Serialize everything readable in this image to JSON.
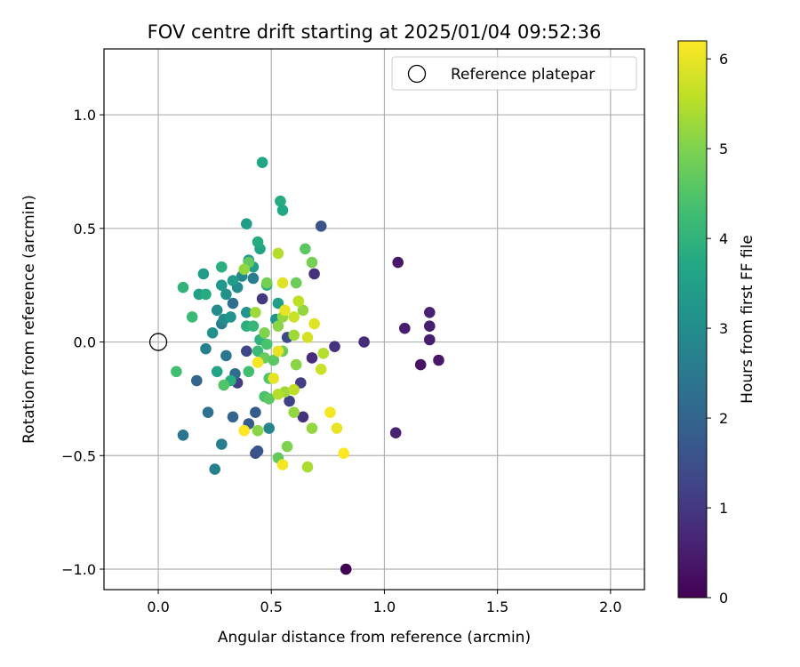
{
  "chart_data": {
    "type": "scatter",
    "title": "FOV centre drift starting at 2025/01/04 09:52:36",
    "xlabel": "Angular distance from reference (arcmin)",
    "ylabel": "Rotation from reference (arcmin)",
    "xlim": [
      -0.24,
      2.15
    ],
    "ylim": [
      -1.09,
      1.29
    ],
    "x_ticks": [
      0.0,
      0.5,
      1.0,
      1.5,
      2.0
    ],
    "x_tick_labels": [
      "0.0",
      "0.5",
      "1.0",
      "1.5",
      "2.0"
    ],
    "y_ticks": [
      -1.0,
      -0.5,
      0.0,
      0.5,
      1.0
    ],
    "y_tick_labels": [
      "−1.0",
      "−0.5",
      "0.0",
      "0.5",
      "1.0"
    ],
    "grid": true,
    "legend": {
      "placement": "top-right",
      "entries": [
        "Reference platepar"
      ]
    },
    "colorbar": {
      "label": "Hours from first FF file",
      "colormap": "viridis",
      "range": [
        0,
        6.2
      ],
      "ticks": [
        0,
        1,
        2,
        3,
        4,
        5,
        6
      ],
      "tick_labels": [
        "0",
        "1",
        "2",
        "3",
        "4",
        "5",
        "6"
      ]
    },
    "reference": {
      "x": 0.0,
      "y": 0.0
    },
    "points": [
      {
        "x": 0.83,
        "y": -1.0,
        "h": 0.0
      },
      {
        "x": 1.06,
        "y": 0.35,
        "h": 0.4
      },
      {
        "x": 1.2,
        "y": 0.13,
        "h": 0.6
      },
      {
        "x": 1.2,
        "y": 0.07,
        "h": 0.5
      },
      {
        "x": 1.09,
        "y": 0.06,
        "h": 0.5
      },
      {
        "x": 1.2,
        "y": 0.01,
        "h": 0.5
      },
      {
        "x": 1.24,
        "y": -0.08,
        "h": 0.4
      },
      {
        "x": 1.16,
        "y": -0.1,
        "h": 0.3
      },
      {
        "x": 1.05,
        "y": -0.4,
        "h": 0.6
      },
      {
        "x": 0.91,
        "y": 0.0,
        "h": 0.8
      },
      {
        "x": 0.78,
        "y": -0.02,
        "h": 0.9
      },
      {
        "x": 0.69,
        "y": 0.3,
        "h": 0.9
      },
      {
        "x": 0.68,
        "y": -0.07,
        "h": 0.8
      },
      {
        "x": 0.64,
        "y": -0.33,
        "h": 0.9
      },
      {
        "x": 0.63,
        "y": -0.18,
        "h": 1.1
      },
      {
        "x": 0.58,
        "y": -0.26,
        "h": 1.2
      },
      {
        "x": 0.57,
        "y": 0.02,
        "h": 1.4
      },
      {
        "x": 0.72,
        "y": 0.51,
        "h": 1.6
      },
      {
        "x": 0.46,
        "y": 0.19,
        "h": 1.0
      },
      {
        "x": 0.35,
        "y": -0.18,
        "h": 1.1
      },
      {
        "x": 0.39,
        "y": -0.04,
        "h": 1.3
      },
      {
        "x": 0.43,
        "y": -0.49,
        "h": 1.5
      },
      {
        "x": 0.44,
        "y": -0.48,
        "h": 1.6
      },
      {
        "x": 0.4,
        "y": -0.36,
        "h": 1.8
      },
      {
        "x": 0.43,
        "y": -0.31,
        "h": 1.8
      },
      {
        "x": 0.33,
        "y": -0.33,
        "h": 2.0
      },
      {
        "x": 0.17,
        "y": -0.17,
        "h": 2.0
      },
      {
        "x": 0.22,
        "y": -0.31,
        "h": 2.3
      },
      {
        "x": 0.11,
        "y": -0.41,
        "h": 2.4
      },
      {
        "x": 0.28,
        "y": -0.45,
        "h": 2.6
      },
      {
        "x": 0.25,
        "y": -0.56,
        "h": 2.7
      },
      {
        "x": 0.49,
        "y": -0.38,
        "h": 2.8
      },
      {
        "x": 0.34,
        "y": -0.14,
        "h": 2.2
      },
      {
        "x": 0.3,
        "y": -0.06,
        "h": 2.4
      },
      {
        "x": 0.33,
        "y": 0.17,
        "h": 2.2
      },
      {
        "x": 0.28,
        "y": 0.08,
        "h": 2.6
      },
      {
        "x": 0.21,
        "y": -0.03,
        "h": 2.7
      },
      {
        "x": 0.42,
        "y": 0.28,
        "h": 2.6
      },
      {
        "x": 0.26,
        "y": 0.14,
        "h": 3.0
      },
      {
        "x": 0.24,
        "y": 0.04,
        "h": 3.1
      },
      {
        "x": 0.29,
        "y": 0.1,
        "h": 3.0
      },
      {
        "x": 0.32,
        "y": 0.11,
        "h": 3.2
      },
      {
        "x": 0.35,
        "y": 0.24,
        "h": 3.0
      },
      {
        "x": 0.37,
        "y": 0.29,
        "h": 2.9
      },
      {
        "x": 0.3,
        "y": 0.21,
        "h": 3.1
      },
      {
        "x": 0.28,
        "y": 0.25,
        "h": 3.3
      },
      {
        "x": 0.33,
        "y": 0.27,
        "h": 3.4
      },
      {
        "x": 0.39,
        "y": 0.13,
        "h": 3.2
      },
      {
        "x": 0.39,
        "y": 0.52,
        "h": 3.4
      },
      {
        "x": 0.42,
        "y": 0.33,
        "h": 3.5
      },
      {
        "x": 0.4,
        "y": 0.36,
        "h": 3.3
      },
      {
        "x": 0.45,
        "y": 0.41,
        "h": 3.6
      },
      {
        "x": 0.44,
        "y": 0.44,
        "h": 3.8
      },
      {
        "x": 0.48,
        "y": 0.25,
        "h": 3.9
      },
      {
        "x": 0.46,
        "y": 0.79,
        "h": 3.7
      },
      {
        "x": 0.54,
        "y": 0.62,
        "h": 3.8
      },
      {
        "x": 0.55,
        "y": 0.58,
        "h": 3.7
      },
      {
        "x": 0.52,
        "y": 0.1,
        "h": 3.2
      },
      {
        "x": 0.53,
        "y": 0.17,
        "h": 3.5
      },
      {
        "x": 0.2,
        "y": 0.3,
        "h": 3.4
      },
      {
        "x": 0.18,
        "y": 0.21,
        "h": 3.5
      },
      {
        "x": 0.21,
        "y": 0.21,
        "h": 3.8
      },
      {
        "x": 0.11,
        "y": 0.24,
        "h": 4.0
      },
      {
        "x": 0.15,
        "y": 0.11,
        "h": 4.2
      },
      {
        "x": 0.08,
        "y": -0.13,
        "h": 4.3
      },
      {
        "x": 0.26,
        "y": -0.13,
        "h": 3.6
      },
      {
        "x": 0.32,
        "y": -0.17,
        "h": 3.9
      },
      {
        "x": 0.29,
        "y": -0.19,
        "h": 4.5
      },
      {
        "x": 0.28,
        "y": 0.33,
        "h": 3.9
      },
      {
        "x": 0.39,
        "y": 0.07,
        "h": 3.9
      },
      {
        "x": 0.42,
        "y": 0.07,
        "h": 4.1
      },
      {
        "x": 0.45,
        "y": 0.01,
        "h": 4.0
      },
      {
        "x": 0.44,
        "y": -0.04,
        "h": 4.2
      },
      {
        "x": 0.48,
        "y": -0.01,
        "h": 4.4
      },
      {
        "x": 0.4,
        "y": -0.13,
        "h": 4.3
      },
      {
        "x": 0.47,
        "y": -0.24,
        "h": 4.4
      },
      {
        "x": 0.49,
        "y": -0.25,
        "h": 4.6
      },
      {
        "x": 0.53,
        "y": -0.51,
        "h": 4.7
      },
      {
        "x": 0.57,
        "y": -0.46,
        "h": 5.0
      },
      {
        "x": 0.44,
        "y": -0.39,
        "h": 5.1
      },
      {
        "x": 0.47,
        "y": -0.07,
        "h": 4.8
      },
      {
        "x": 0.49,
        "y": -0.16,
        "h": 4.5
      },
      {
        "x": 0.51,
        "y": -0.08,
        "h": 4.6
      },
      {
        "x": 0.55,
        "y": -0.04,
        "h": 4.8
      },
      {
        "x": 0.48,
        "y": 0.26,
        "h": 4.9
      },
      {
        "x": 0.47,
        "y": 0.04,
        "h": 5.0
      },
      {
        "x": 0.53,
        "y": 0.07,
        "h": 5.1
      },
      {
        "x": 0.55,
        "y": 0.11,
        "h": 5.2
      },
      {
        "x": 0.6,
        "y": 0.03,
        "h": 5.3
      },
      {
        "x": 0.64,
        "y": 0.14,
        "h": 5.2
      },
      {
        "x": 0.65,
        "y": 0.41,
        "h": 4.6
      },
      {
        "x": 0.68,
        "y": 0.35,
        "h": 4.9
      },
      {
        "x": 0.61,
        "y": 0.26,
        "h": 4.8
      },
      {
        "x": 0.4,
        "y": 0.35,
        "h": 4.7
      },
      {
        "x": 0.38,
        "y": 0.32,
        "h": 5.2
      },
      {
        "x": 0.43,
        "y": 0.13,
        "h": 5.3
      },
      {
        "x": 0.53,
        "y": 0.39,
        "h": 5.5
      },
      {
        "x": 0.61,
        "y": -0.1,
        "h": 5.1
      },
      {
        "x": 0.6,
        "y": -0.31,
        "h": 5.2
      },
      {
        "x": 0.68,
        "y": -0.38,
        "h": 5.2
      },
      {
        "x": 0.66,
        "y": -0.55,
        "h": 5.4
      },
      {
        "x": 0.56,
        "y": -0.22,
        "h": 5.3
      },
      {
        "x": 0.53,
        "y": -0.23,
        "h": 5.5
      },
      {
        "x": 0.6,
        "y": -0.21,
        "h": 5.6
      },
      {
        "x": 0.72,
        "y": -0.12,
        "h": 5.7
      },
      {
        "x": 0.73,
        "y": -0.05,
        "h": 5.5
      },
      {
        "x": 0.66,
        "y": 0.02,
        "h": 5.8
      },
      {
        "x": 0.62,
        "y": 0.18,
        "h": 5.6
      },
      {
        "x": 0.6,
        "y": 0.11,
        "h": 5.7
      },
      {
        "x": 0.55,
        "y": 0.26,
        "h": 5.9
      },
      {
        "x": 0.56,
        "y": 0.14,
        "h": 6.0
      },
      {
        "x": 0.69,
        "y": 0.08,
        "h": 5.9
      },
      {
        "x": 0.44,
        "y": -0.09,
        "h": 6.1
      },
      {
        "x": 0.51,
        "y": -0.16,
        "h": 6.0
      },
      {
        "x": 0.53,
        "y": -0.04,
        "h": 6.0
      },
      {
        "x": 0.38,
        "y": -0.39,
        "h": 6.2
      },
      {
        "x": 0.55,
        "y": -0.54,
        "h": 6.1
      },
      {
        "x": 0.76,
        "y": -0.31,
        "h": 6.1
      },
      {
        "x": 0.79,
        "y": -0.38,
        "h": 6.0
      },
      {
        "x": 0.82,
        "y": -0.49,
        "h": 6.2
      }
    ]
  }
}
